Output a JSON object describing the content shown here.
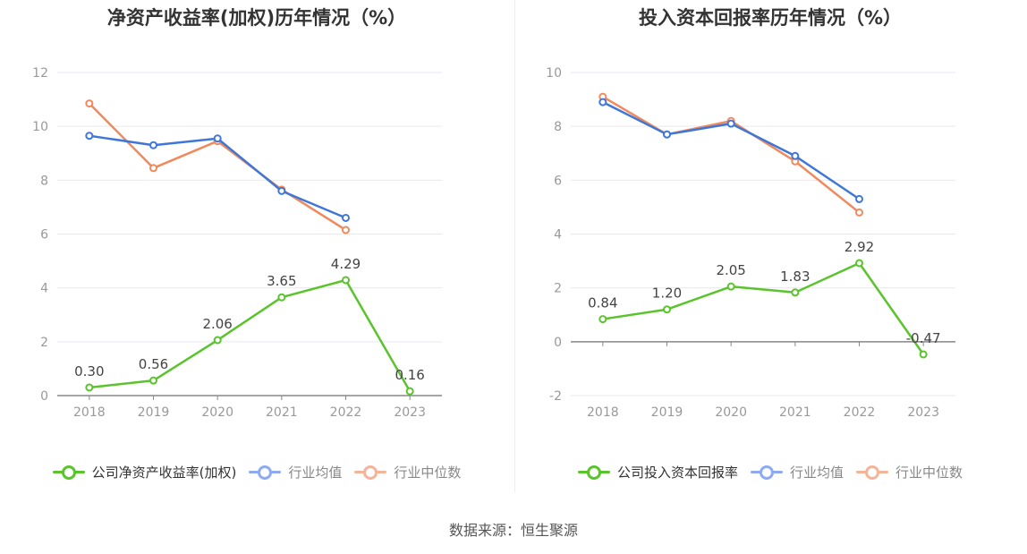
{
  "colors": {
    "company": "#5ac42c",
    "industry_avg": "#3f77d9",
    "industry_median": "#f08a5d",
    "legend_avg": "#8eaaf0",
    "legend_median": "#f5b49a"
  },
  "source": "数据来源：恒生聚源",
  "chart_data": [
    {
      "type": "line",
      "title": "净资产收益率(加权)历年情况（%）",
      "categories": [
        "2018",
        "2019",
        "2020",
        "2021",
        "2022",
        "2023"
      ],
      "ylim": [
        0,
        12
      ],
      "yticks": [
        "0",
        "2",
        "4",
        "6",
        "8",
        "10",
        "12"
      ],
      "grid": true,
      "legend_position": "bottom",
      "series": [
        {
          "name": "公司净资产收益率(加权)",
          "values": [
            0.3,
            0.56,
            2.06,
            3.65,
            4.29,
            0.16
          ],
          "labels": [
            "0.30",
            "0.56",
            "2.06",
            "3.65",
            "4.29",
            "0.16"
          ]
        },
        {
          "name": "行业均值",
          "values": [
            9.65,
            9.3,
            9.55,
            7.6,
            6.6,
            null
          ]
        },
        {
          "name": "行业中位数",
          "values": [
            10.85,
            8.45,
            9.45,
            7.65,
            6.15,
            null
          ]
        }
      ]
    },
    {
      "type": "line",
      "title": "投入资本回报率历年情况（%）",
      "categories": [
        "2018",
        "2019",
        "2020",
        "2021",
        "2022",
        "2023"
      ],
      "ylim": [
        -2,
        10
      ],
      "yticks": [
        "-2",
        "0",
        "2",
        "4",
        "6",
        "8",
        "10"
      ],
      "grid": true,
      "legend_position": "bottom",
      "series": [
        {
          "name": "公司投入资本回报率",
          "values": [
            0.84,
            1.2,
            2.05,
            1.83,
            2.92,
            -0.47
          ],
          "labels": [
            "0.84",
            "1.20",
            "2.05",
            "1.83",
            "2.92",
            "-0.47"
          ]
        },
        {
          "name": "行业均值",
          "values": [
            8.9,
            7.7,
            8.1,
            6.9,
            5.3,
            null
          ]
        },
        {
          "name": "行业中位数",
          "values": [
            9.1,
            7.7,
            8.2,
            6.7,
            4.8,
            null
          ]
        }
      ]
    }
  ]
}
